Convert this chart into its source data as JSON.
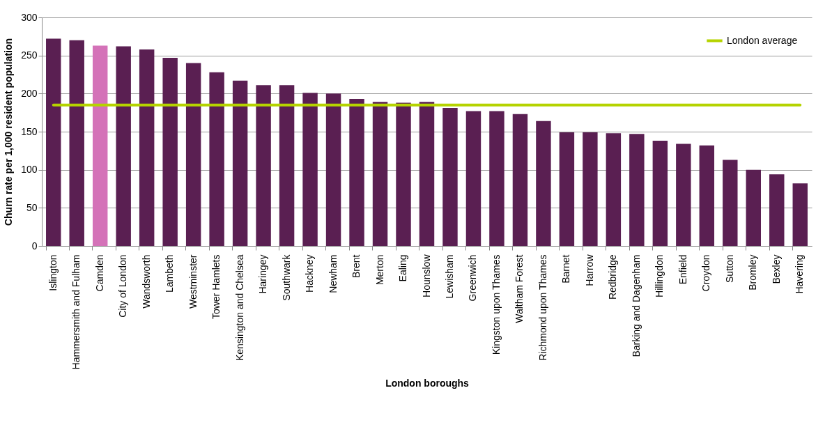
{
  "chart_data": {
    "type": "bar",
    "xlabel": "London boroughs",
    "ylabel": "Churn rate per 1,000 resident population",
    "categories": [
      "Islington",
      "Hammersmith and Fulham",
      "Camden",
      "City of London",
      "Wandsworth",
      "Lambeth",
      "Westminster",
      "Tower Hamlets",
      "Kensington and Chelsea",
      "Haringey",
      "Southwark",
      "Hackney",
      "Newham",
      "Brent",
      "Merton",
      "Ealing",
      "Hounslow",
      "Lewisham",
      "Greenwich",
      "Kingston upon Thames",
      "Waltham Forest",
      "Richmond upon Thames",
      "Barnet",
      "Harrow",
      "Redbridge",
      "Barking and Dagenham",
      "Hillingdon",
      "Enfield",
      "Croydon",
      "Sutton",
      "Bromley",
      "Bexley",
      "Havering"
    ],
    "series": [
      {
        "colors": [
          "#5a1f52",
          "#5a1f52",
          "#d472b8",
          "#5a1f52",
          "#5a1f52",
          "#5a1f52",
          "#5a1f52",
          "#5a1f52",
          "#5a1f52",
          "#5a1f52",
          "#5a1f52",
          "#5a1f52",
          "#5a1f52",
          "#5a1f52",
          "#5a1f52",
          "#5a1f52",
          "#5a1f52",
          "#5a1f52",
          "#5a1f52",
          "#5a1f52",
          "#5a1f52",
          "#5a1f52",
          "#5a1f52",
          "#5a1f52",
          "#5a1f52",
          "#5a1f52",
          "#5a1f52",
          "#5a1f52",
          "#5a1f52",
          "#5a1f52",
          "#5a1f52",
          "#5a1f52",
          "#5a1f52"
        ],
        "values": [
          272,
          270,
          263,
          262,
          258,
          247,
          240,
          228,
          217,
          211,
          211,
          201,
          200,
          193,
          189,
          188,
          189,
          181,
          177,
          177,
          173,
          164,
          149,
          149,
          148,
          147,
          138,
          134,
          132,
          113,
          100,
          94,
          82
        ]
      },
      {
        "type": "line",
        "name": "London average",
        "color": "#b5d300",
        "values": [
          185,
          185,
          185,
          185,
          185,
          185,
          185,
          185,
          185,
          185,
          185,
          185,
          185,
          185,
          185,
          185,
          185,
          185,
          185,
          185,
          185,
          185,
          185,
          185,
          185,
          185,
          185,
          185,
          185,
          185,
          185,
          185,
          185
        ]
      }
    ],
    "ylim": [
      0,
      300
    ],
    "yticks": [
      0,
      50,
      100,
      150,
      200,
      250,
      300
    ],
    "grid": "y",
    "legend": "top right"
  }
}
